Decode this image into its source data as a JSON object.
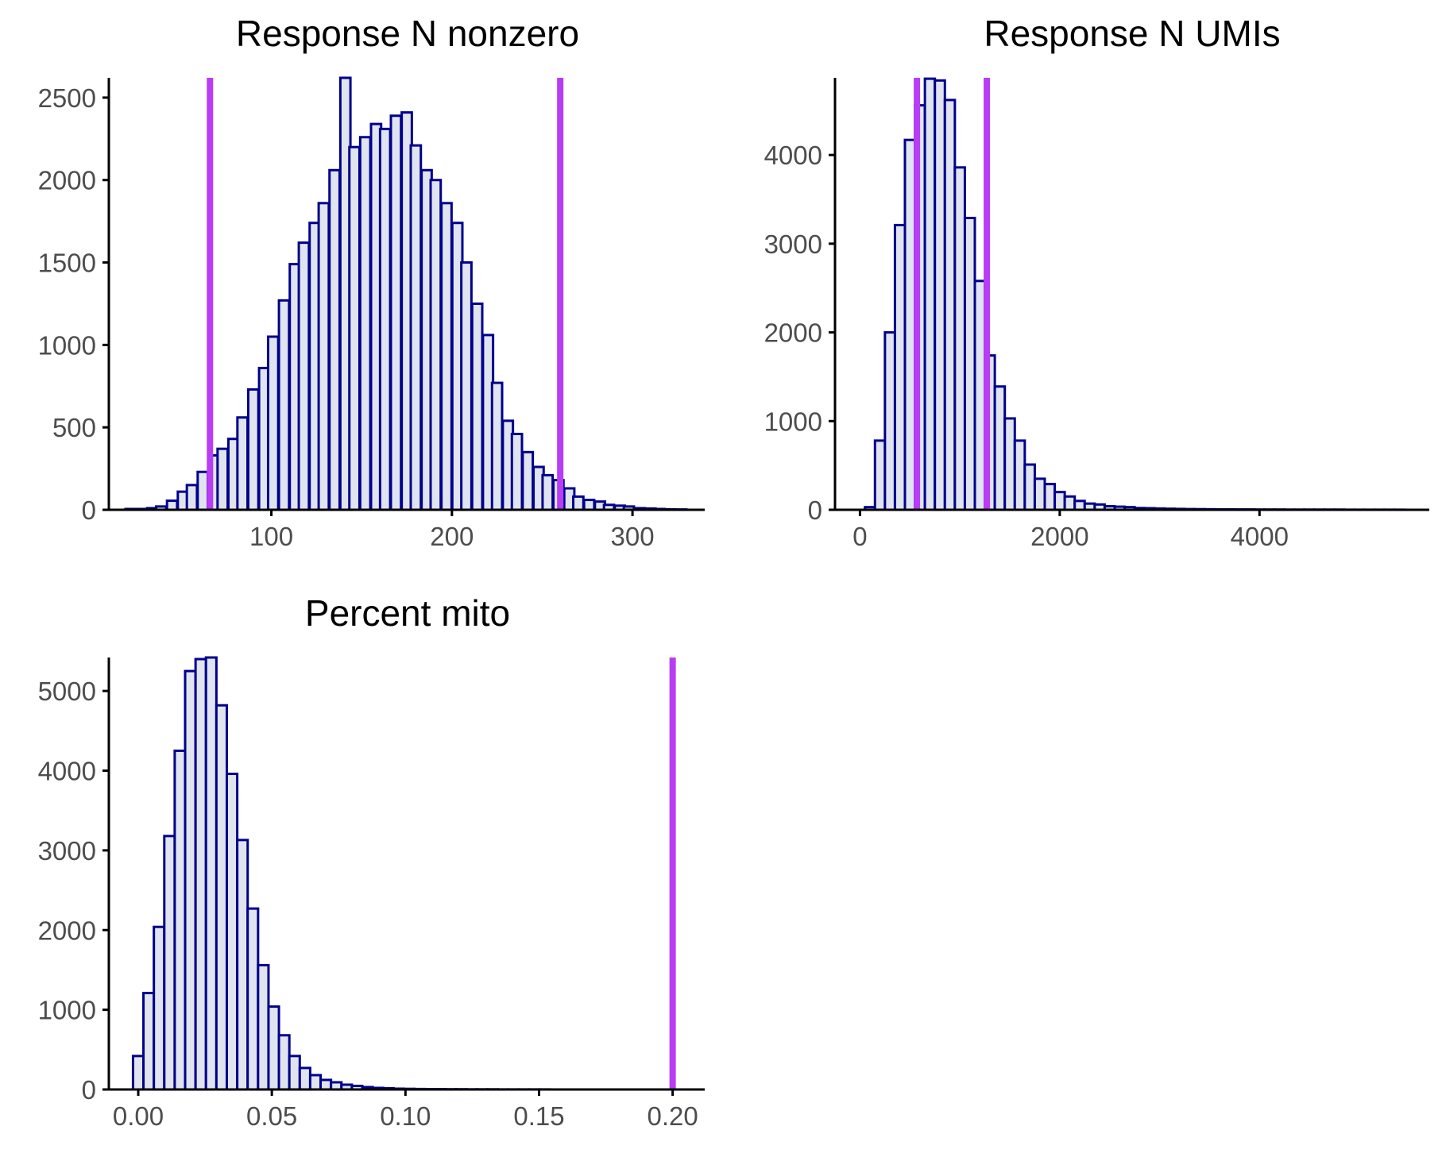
{
  "colors": {
    "bar_fill": "#dfe4ee",
    "bar_outline": "#00008b",
    "threshold_line": "#b83df4",
    "axis": "#000000",
    "tick_text": "#4d4d4d"
  },
  "chart_data": [
    {
      "type": "bar",
      "title": "Response N nonzero",
      "xlabel": "",
      "ylabel": "",
      "xlim": [
        10,
        340
      ],
      "ylim": [
        0,
        2620
      ],
      "binwidth": 5.6,
      "bins_x": [
        22,
        28,
        34,
        39,
        45,
        51,
        56,
        62,
        68,
        73,
        79,
        84,
        90,
        96,
        101,
        107,
        113,
        118,
        124,
        129,
        135,
        141,
        146,
        152,
        158,
        163,
        169,
        175,
        180,
        186,
        191,
        197,
        203,
        208,
        214,
        220,
        225,
        231,
        236,
        242,
        248,
        253,
        259,
        265,
        270,
        276,
        282,
        287,
        293,
        298,
        304,
        310,
        315,
        321,
        327
      ],
      "counts": [
        5,
        5,
        10,
        20,
        55,
        110,
        150,
        230,
        330,
        370,
        430,
        560,
        730,
        860,
        1050,
        1270,
        1490,
        1620,
        1740,
        1860,
        2060,
        2620,
        2200,
        2260,
        2340,
        2310,
        2390,
        2410,
        2210,
        2060,
        2000,
        1860,
        1740,
        1500,
        1250,
        1060,
        770,
        540,
        460,
        350,
        260,
        210,
        180,
        130,
        80,
        60,
        50,
        30,
        25,
        20,
        10,
        8,
        5,
        3,
        2
      ],
      "thresholds": [
        66,
        260
      ],
      "xticks": [
        100,
        200,
        300
      ],
      "xtick_labels": [
        "100",
        "200",
        "300"
      ],
      "yticks": [
        0,
        500,
        1000,
        1500,
        2000,
        2500
      ],
      "ytick_labels": [
        "0",
        "500",
        "1000",
        "1500",
        "2000",
        "2500"
      ]
    },
    {
      "type": "bar",
      "title": "Response N UMIs",
      "xlabel": "",
      "ylabel": "",
      "xlim": [
        -250,
        5700
      ],
      "ylim": [
        0,
        4870
      ],
      "binwidth": 100,
      "bins_x": [
        100,
        200,
        300,
        400,
        500,
        600,
        700,
        800,
        900,
        1000,
        1100,
        1200,
        1300,
        1400,
        1500,
        1600,
        1700,
        1800,
        1900,
        2000,
        2100,
        2200,
        2300,
        2400,
        2500,
        2600,
        2700,
        2800,
        2900,
        3000,
        3100,
        3200,
        3300,
        3400,
        3500,
        3600,
        3700,
        3800,
        3900,
        4000,
        4100,
        4200,
        4300,
        4400,
        4500,
        4600,
        4700,
        4800,
        4900,
        5000,
        5100,
        5200,
        5300,
        5400
      ],
      "counts": [
        30,
        780,
        2000,
        3210,
        4170,
        4560,
        4860,
        4840,
        4620,
        3860,
        3290,
        2580,
        1740,
        1390,
        1030,
        780,
        510,
        350,
        290,
        200,
        150,
        100,
        70,
        60,
        40,
        35,
        30,
        20,
        18,
        15,
        12,
        10,
        8,
        7,
        6,
        5,
        5,
        4,
        4,
        3,
        3,
        3,
        2,
        2,
        2,
        2,
        2,
        2,
        1,
        1,
        1,
        1,
        1,
        1
      ],
      "thresholds": [
        570,
        1270
      ],
      "xticks": [
        0,
        2000,
        4000
      ],
      "xtick_labels": [
        "0",
        "2000",
        "4000"
      ],
      "yticks": [
        0,
        1000,
        2000,
        3000,
        4000
      ],
      "ytick_labels": [
        "0",
        "1000",
        "2000",
        "3000",
        "4000"
      ]
    },
    {
      "type": "bar",
      "title": "Percent mito",
      "xlabel": "",
      "ylabel": "",
      "xlim": [
        -0.011,
        0.212
      ],
      "ylim": [
        0,
        5420
      ],
      "binwidth": 0.0039,
      "bins_x": [
        0.0,
        0.0039,
        0.0078,
        0.0117,
        0.0156,
        0.0195,
        0.0234,
        0.0273,
        0.0312,
        0.0351,
        0.039,
        0.0429,
        0.0468,
        0.0507,
        0.0546,
        0.0585,
        0.0624,
        0.0663,
        0.0702,
        0.0741,
        0.078,
        0.0819,
        0.0858,
        0.0897,
        0.0936,
        0.0975,
        0.1014,
        0.1053,
        0.1092,
        0.1131,
        0.117,
        0.1209,
        0.1248,
        0.1287,
        0.1326,
        0.1365,
        0.1404,
        0.1443,
        0.1482,
        0.1521
      ],
      "counts": [
        420,
        1210,
        2040,
        3180,
        4250,
        5250,
        5400,
        5420,
        4820,
        3960,
        3130,
        2270,
        1560,
        1040,
        680,
        420,
        270,
        180,
        120,
        90,
        60,
        45,
        30,
        20,
        15,
        10,
        8,
        6,
        5,
        4,
        3,
        3,
        2,
        2,
        2,
        1,
        1,
        1,
        1,
        1
      ],
      "thresholds": [
        0.2
      ],
      "xticks": [
        0.0,
        0.05,
        0.1,
        0.15,
        0.2
      ],
      "xtick_labels": [
        "0.00",
        "0.05",
        "0.10",
        "0.15",
        "0.20"
      ],
      "yticks": [
        0,
        1000,
        2000,
        3000,
        4000,
        5000
      ],
      "ytick_labels": [
        "0",
        "1000",
        "2000",
        "3000",
        "4000",
        "5000"
      ]
    }
  ]
}
